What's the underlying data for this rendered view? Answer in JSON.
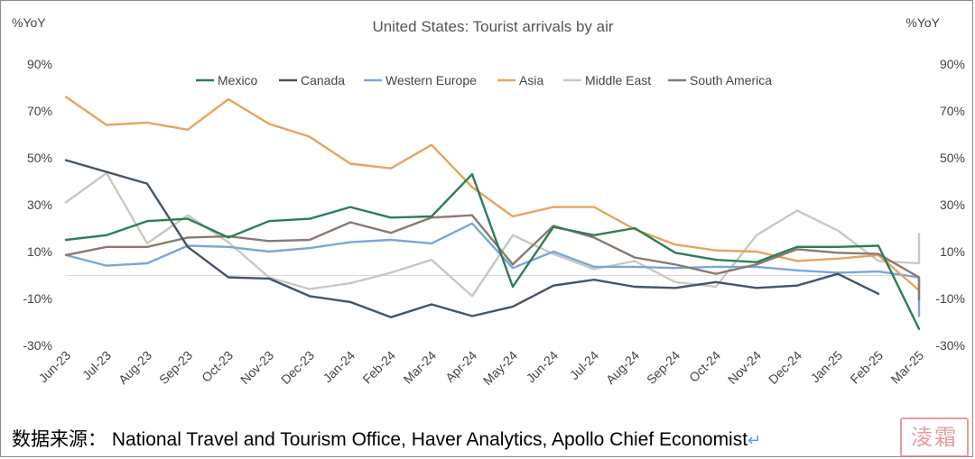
{
  "chart_data": {
    "type": "line",
    "title": "United States: Tourist arrivals by air",
    "ylabel_left": "%YoY",
    "ylabel_right": "%YoY",
    "ylim": [
      -30,
      90
    ],
    "yticks": [
      -30,
      -10,
      10,
      30,
      50,
      70,
      90
    ],
    "ytick_labels": [
      "-30%",
      "-10%",
      "10%",
      "30%",
      "50%",
      "70%",
      "90%"
    ],
    "x": [
      "Jun-23",
      "Jul-23",
      "Aug-23",
      "Sep-23",
      "Oct-23",
      "Nov-23",
      "Dec-23",
      "Jan-24",
      "Feb-24",
      "Mar-24",
      "Apr-24",
      "May-24",
      "Jun-24",
      "Jul-24",
      "Aug-24",
      "Sep-24",
      "Oct-24",
      "Nov-24",
      "Dec-24",
      "Jan-25",
      "Feb-25",
      "Mar-25"
    ],
    "legend_position": "top",
    "grid": false,
    "series": [
      {
        "name": "Mexico",
        "color": "#2e7d55",
        "points": [
          [
            "Jun-23",
            15
          ],
          [
            "Jul-23",
            17
          ],
          [
            "Aug-23",
            23
          ],
          [
            "Sep-23",
            24
          ],
          [
            "Oct-23",
            16
          ],
          [
            "Nov-23",
            23
          ],
          [
            "Dec-23",
            24
          ],
          [
            "Jan-24",
            29
          ],
          [
            "Feb-24",
            24.5
          ],
          [
            "Mar-24",
            25
          ],
          [
            "Apr-24",
            43
          ],
          [
            "May-24",
            -5
          ],
          [
            "Jun-24",
            20.5
          ],
          [
            "Jul-24",
            17
          ],
          [
            "Aug-24",
            20
          ],
          [
            "Sep-24",
            9.5
          ],
          [
            "Oct-24",
            6.5
          ],
          [
            "Nov-24",
            5.5
          ],
          [
            "Dec-24",
            12
          ],
          [
            "Jan-25",
            12
          ],
          [
            "Feb-25",
            12.5
          ],
          [
            "Mar-25",
            -23
          ]
        ]
      },
      {
        "name": "Canada",
        "color": "#44546a",
        "points": [
          [
            "Jun-23",
            49
          ],
          [
            "Jul-23",
            44
          ],
          [
            "Aug-23",
            39
          ],
          [
            "Sep-23",
            12
          ],
          [
            "Oct-23",
            -1
          ],
          [
            "Nov-23",
            -1.5
          ],
          [
            "Dec-23",
            -9
          ],
          [
            "Jan-24",
            -11.5
          ],
          [
            "Feb-24",
            -18
          ],
          [
            "Mar-24",
            -12.5
          ],
          [
            "Apr-24",
            -17.5
          ],
          [
            "May-24",
            -13.5
          ],
          [
            "Jun-24",
            -4.5
          ],
          [
            "Jul-24",
            -2
          ],
          [
            "Aug-24",
            -5
          ],
          [
            "Sep-24",
            -5.5
          ],
          [
            "Oct-24",
            -3
          ],
          [
            "Nov-24",
            -5.5
          ],
          [
            "Dec-24",
            -4.5
          ],
          [
            "Jan-25",
            0.5
          ],
          [
            "Feb-25",
            -8
          ]
        ]
      },
      {
        "name": "Western Europe",
        "color": "#7aa6d8",
        "points": [
          [
            "Jun-23",
            8.5
          ],
          [
            "Jul-23",
            4
          ],
          [
            "Aug-23",
            5
          ],
          [
            "Sep-23",
            12.5
          ],
          [
            "Oct-23",
            12
          ],
          [
            "Nov-23",
            10
          ],
          [
            "Dec-23",
            11.5
          ],
          [
            "Jan-24",
            14
          ],
          [
            "Feb-24",
            15
          ],
          [
            "Mar-24",
            13.5
          ],
          [
            "Apr-24",
            22
          ],
          [
            "May-24",
            3
          ],
          [
            "Jun-24",
            10
          ],
          [
            "Jul-24",
            3.5
          ],
          [
            "Aug-24",
            3.5
          ],
          [
            "Sep-24",
            3
          ],
          [
            "Oct-24",
            3.5
          ],
          [
            "Nov-24",
            3.5
          ],
          [
            "Dec-24",
            2
          ],
          [
            "Jan-25",
            1
          ],
          [
            "Feb-25",
            1.5
          ],
          [
            "Mar-25",
            -1
          ],
          [
            "Mar-25",
            -17.5
          ]
        ]
      },
      {
        "name": "Asia",
        "color": "#e8a35f",
        "points": [
          [
            "Jun-23",
            76
          ],
          [
            "Jul-23",
            64
          ],
          [
            "Aug-23",
            65
          ],
          [
            "Sep-23",
            62
          ],
          [
            "Oct-23",
            75
          ],
          [
            "Nov-23",
            64.5
          ],
          [
            "Dec-23",
            59
          ],
          [
            "Jan-24",
            47.5
          ],
          [
            "Feb-24",
            45.5
          ],
          [
            "Mar-24",
            55.5
          ],
          [
            "Apr-24",
            37.5
          ],
          [
            "May-24",
            25
          ],
          [
            "Jun-24",
            29
          ],
          [
            "Jul-24",
            29
          ],
          [
            "Aug-24",
            19.5
          ],
          [
            "Sep-24",
            13
          ],
          [
            "Oct-24",
            10.5
          ],
          [
            "Nov-24",
            10
          ],
          [
            "Dec-24",
            6
          ],
          [
            "Jan-25",
            7
          ],
          [
            "Feb-25",
            8.5
          ],
          [
            "Mar-25",
            -6.5
          ],
          [
            "Mar-25",
            -3.5
          ]
        ]
      },
      {
        "name": "Middle East",
        "color": "#c9c9c0",
        "points": [
          [
            "Jun-23",
            31
          ],
          [
            "Jul-23",
            43.5
          ],
          [
            "Aug-23",
            13.5
          ],
          [
            "Sep-23",
            25.5
          ],
          [
            "Oct-23",
            14
          ],
          [
            "Nov-23",
            -1
          ],
          [
            "Dec-23",
            -6
          ],
          [
            "Jan-24",
            -3.5
          ],
          [
            "Feb-24",
            1
          ],
          [
            "Mar-24",
            6.5
          ],
          [
            "Apr-24",
            -9
          ],
          [
            "May-24",
            17
          ],
          [
            "Jun-24",
            9
          ],
          [
            "Jul-24",
            2.5
          ],
          [
            "Aug-24",
            6
          ],
          [
            "Sep-24",
            -3
          ],
          [
            "Oct-24",
            -5
          ],
          [
            "Nov-24",
            17
          ],
          [
            "Dec-24",
            27.5
          ],
          [
            "Jan-25",
            19
          ],
          [
            "Feb-25",
            6
          ],
          [
            "Mar-25",
            5
          ],
          [
            "Mar-25",
            17.5
          ]
        ]
      },
      {
        "name": "South America",
        "color": "#8a7a70",
        "points": [
          [
            "Jun-23",
            8.5
          ],
          [
            "Jul-23",
            12
          ],
          [
            "Aug-23",
            12
          ],
          [
            "Sep-23",
            16
          ],
          [
            "Oct-23",
            16.5
          ],
          [
            "Nov-23",
            14.5
          ],
          [
            "Dec-23",
            15
          ],
          [
            "Jan-24",
            22.5
          ],
          [
            "Feb-24",
            18
          ],
          [
            "Mar-24",
            24.5
          ],
          [
            "Apr-24",
            25.5
          ],
          [
            "May-24",
            4.5
          ],
          [
            "Jun-24",
            21
          ],
          [
            "Jul-24",
            16
          ],
          [
            "Aug-24",
            7.5
          ],
          [
            "Sep-24",
            4.5
          ],
          [
            "Oct-24",
            0.5
          ],
          [
            "Nov-24",
            4.5
          ],
          [
            "Dec-24",
            11
          ],
          [
            "Jan-25",
            9.5
          ],
          [
            "Feb-25",
            9
          ],
          [
            "Mar-25",
            -1
          ],
          [
            "Mar-25",
            -10.5
          ]
        ]
      }
    ]
  },
  "footer": {
    "source_label": "数据来源：",
    "source_text": "National Travel and Tourism Office, Haver Analytics, Apollo Chief Economist",
    "return_glyph": "↵"
  },
  "seal": {
    "text": "淩霜"
  }
}
